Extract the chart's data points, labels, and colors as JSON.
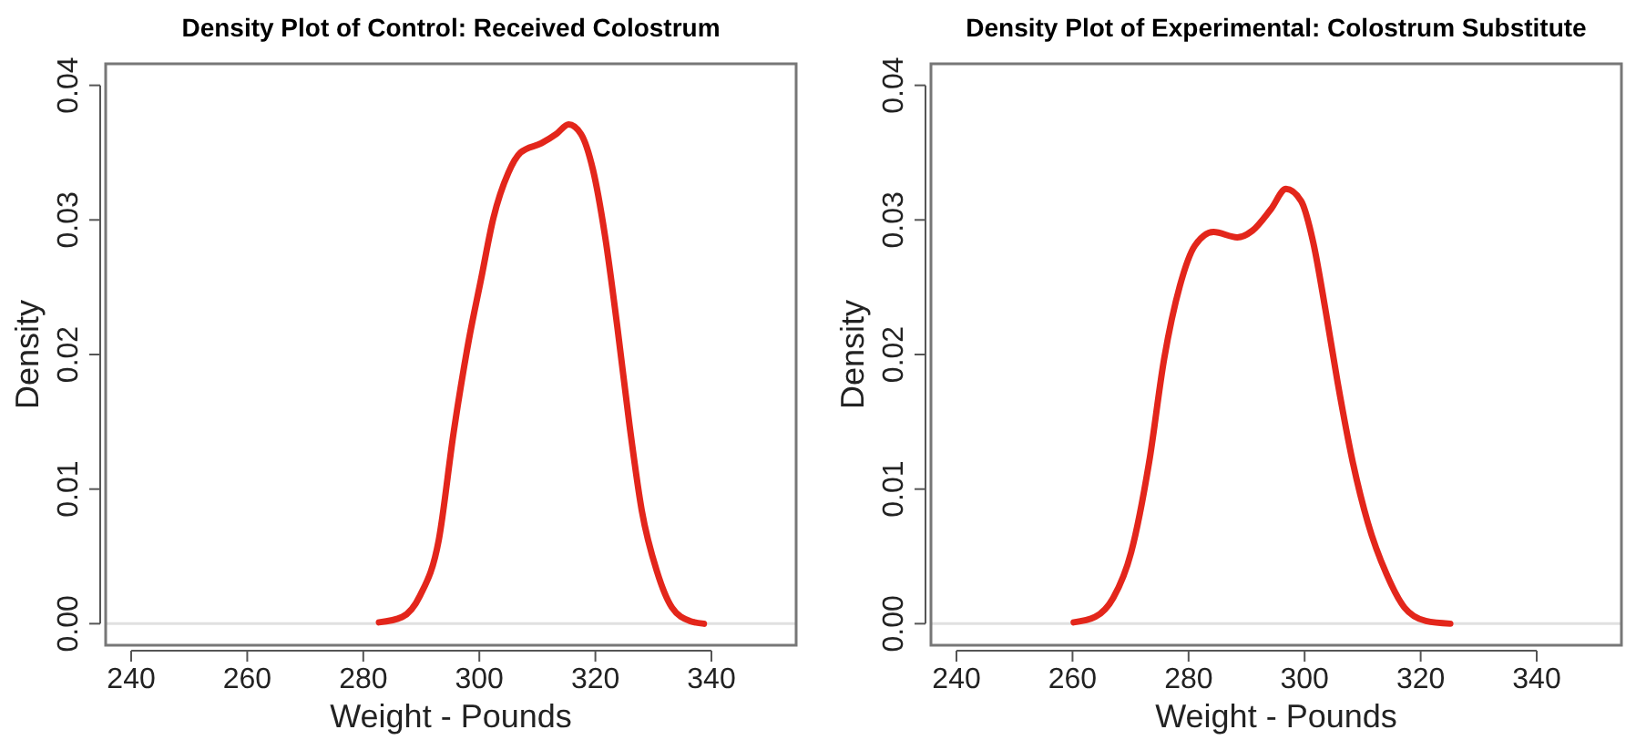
{
  "chart_data": [
    {
      "type": "line",
      "title": "Density Plot of Control: Received Colostrum",
      "xlabel": "Weight - Pounds",
      "ylabel": "Density",
      "xlim": [
        235.6,
        354.6
      ],
      "xticks": [
        240,
        260,
        280,
        300,
        320,
        340
      ],
      "ylim": [
        -0.0016,
        0.0416
      ],
      "yticks": [
        {
          "value": 0,
          "label": "0.00"
        },
        0.01,
        0.02,
        0.03,
        0.04
      ],
      "grid": false,
      "ref_lines": [
        {
          "axis": "y",
          "value": 0,
          "color": "#e0e0e0"
        }
      ],
      "series": [
        {
          "color": "#e3261b",
          "x": [
            282.7,
            286.7,
            289.8,
            293.0,
            295.6,
            298.2,
            300.3,
            302.4,
            305.0,
            307.1,
            310.7,
            313.3,
            315.4,
            317.5,
            319.6,
            321.7,
            323.8,
            325.9,
            328.0,
            330.6,
            333.2,
            336.3,
            338.7
          ],
          "values": [
            0.0001,
            0.0005,
            0.0021,
            0.0062,
            0.0143,
            0.0211,
            0.0256,
            0.0301,
            0.0335,
            0.035,
            0.0357,
            0.0364,
            0.0371,
            0.0364,
            0.0337,
            0.0287,
            0.022,
            0.0147,
            0.0084,
            0.0039,
            0.0012,
            0.0002,
            0.0
          ]
        }
      ]
    },
    {
      "type": "line",
      "title": "Density Plot of Experimental: Colostrum Substitute",
      "xlabel": "Weight - Pounds",
      "ylabel": "Density",
      "xlim": [
        235.6,
        354.6
      ],
      "xticks": [
        240,
        260,
        280,
        300,
        320,
        340
      ],
      "ylim": [
        -0.0016,
        0.0416
      ],
      "yticks": [
        {
          "value": 0,
          "label": "0.00"
        },
        0.01,
        0.02,
        0.03,
        0.04
      ],
      "grid": false,
      "ref_lines": [
        {
          "axis": "y",
          "value": 0,
          "color": "#e0e0e0"
        }
      ],
      "series": [
        {
          "color": "#e3261b",
          "x": [
            260.2,
            263.9,
            267.0,
            270.1,
            273.2,
            275.8,
            278.5,
            281.1,
            284.3,
            288.4,
            291.0,
            294.2,
            296.8,
            299.4,
            301.5,
            303.6,
            305.7,
            308.3,
            310.9,
            314.1,
            317.2,
            320.9,
            325.1
          ],
          "values": [
            0.0001,
            0.0005,
            0.0019,
            0.0053,
            0.012,
            0.0197,
            0.0251,
            0.0281,
            0.0291,
            0.0287,
            0.0292,
            0.0308,
            0.0323,
            0.0314,
            0.0283,
            0.0233,
            0.0179,
            0.012,
            0.0075,
            0.0037,
            0.0012,
            0.0002,
            0.0
          ]
        }
      ]
    }
  ]
}
